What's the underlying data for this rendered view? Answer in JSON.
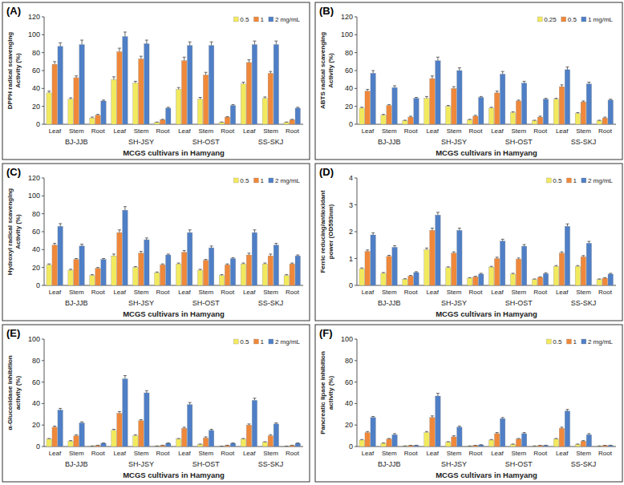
{
  "chart_data": [
    {
      "type": "bar",
      "panel": "(A)",
      "ylabel": [
        "DPPH radical scavenging",
        "Activity (%)"
      ],
      "xlabel": "MCGS cultivars in Hamyang",
      "categories": [
        "Leaf",
        "Stem",
        "Root",
        "Leaf",
        "Stem",
        "Root",
        "Leaf",
        "Stem",
        "Root",
        "Leaf",
        "Stem",
        "Root"
      ],
      "group_labels": [
        "BJ-JJB",
        "SH-JSY",
        "SH-OST",
        "SS-SKJ"
      ],
      "ylim": [
        0,
        120
      ],
      "yticks": [
        0,
        20,
        40,
        60,
        80,
        100,
        120
      ],
      "grid": false,
      "legend": "upper right",
      "series": [
        {
          "name": "0.5",
          "color": "#f2ea5e",
          "values": [
            35,
            28,
            7,
            50,
            46,
            2,
            39,
            28,
            2,
            45,
            29,
            2
          ],
          "errors": [
            2,
            1.5,
            1,
            3,
            2,
            0.5,
            2,
            2,
            0.5,
            2,
            1.5,
            0.5
          ]
        },
        {
          "name": "1",
          "color": "#f0883a",
          "values": [
            67,
            52,
            10,
            81,
            73,
            5,
            71,
            55,
            8,
            69,
            57,
            5
          ],
          "errors": [
            3,
            2,
            1,
            4,
            3,
            0.5,
            4,
            3,
            0.5,
            3,
            2,
            0.5
          ]
        },
        {
          "name": "2 mg/mL",
          "color": "#4f7fc6",
          "values": [
            87,
            89,
            26,
            98,
            90,
            18,
            88,
            88,
            21,
            89,
            89,
            18
          ],
          "errors": [
            4,
            5,
            1,
            5,
            4,
            1,
            4,
            4,
            1,
            4,
            4,
            1
          ]
        }
      ]
    },
    {
      "type": "bar",
      "panel": "(B)",
      "ylabel": [
        "ABTS radical scavenging",
        "Activity (%)"
      ],
      "xlabel": "MCGS cultivars in Hamyang",
      "categories": [
        "Leaf",
        "Stem",
        "Root",
        "Leaf",
        "Stem",
        "Root",
        "Leaf",
        "Stem",
        "Root",
        "Leaf",
        "Stem",
        "Root"
      ],
      "group_labels": [
        "BJ-JJB",
        "SH-JSY",
        "SH-OST",
        "SS-SKJ"
      ],
      "ylim": [
        0,
        120
      ],
      "yticks": [
        0,
        20,
        40,
        60,
        80,
        100,
        120
      ],
      "grid": false,
      "legend": "upper right",
      "series": [
        {
          "name": "0.25",
          "color": "#f2ea5e",
          "values": [
            18,
            10,
            4,
            29,
            20,
            5,
            18,
            13,
            4,
            28,
            12,
            4
          ],
          "errors": [
            1,
            1,
            0.5,
            2,
            1,
            0.5,
            1,
            1,
            0.5,
            1,
            1,
            0.5
          ]
        },
        {
          "name": "0.5",
          "color": "#f0883a",
          "values": [
            37,
            21,
            8,
            51,
            40,
            9,
            35,
            26,
            8,
            42,
            25,
            7
          ],
          "errors": [
            2,
            1,
            1,
            3,
            2,
            1,
            2,
            1,
            1,
            2,
            1,
            1
          ]
        },
        {
          "name": "1 mg/mL",
          "color": "#4f7fc6",
          "values": [
            57,
            41,
            29,
            71,
            60,
            30,
            56,
            46,
            28,
            61,
            45,
            27
          ],
          "errors": [
            3,
            2,
            1,
            4,
            3,
            1,
            3,
            2,
            1,
            3,
            2,
            1
          ]
        }
      ]
    },
    {
      "type": "bar",
      "panel": "(C)",
      "ylabel": [
        "Hydroxyl radical scavenging",
        "Activity (%)"
      ],
      "xlabel": "MCGS cultivars in Hamyang",
      "categories": [
        "Leaf",
        "Stem",
        "Root",
        "Leaf",
        "Stem",
        "Root",
        "Leaf",
        "Stem",
        "Root",
        "Leaf",
        "Stem",
        "Root"
      ],
      "group_labels": [
        "BJ-JJB",
        "SH-JSY",
        "SH-OST",
        "SS-SKJ"
      ],
      "ylim": [
        0,
        120
      ],
      "yticks": [
        0,
        20,
        40,
        60,
        80,
        100,
        120
      ],
      "grid": false,
      "legend": "upper right",
      "series": [
        {
          "name": "0.5",
          "color": "#f2ea5e",
          "values": [
            23,
            17,
            11,
            33,
            20,
            14,
            24,
            17,
            11,
            24,
            24,
            11
          ],
          "errors": [
            1,
            1,
            1,
            2,
            1,
            1,
            1,
            1,
            1,
            1,
            1,
            1
          ]
        },
        {
          "name": "1",
          "color": "#f0883a",
          "values": [
            45,
            29,
            19,
            59,
            36,
            23,
            37,
            28,
            23,
            34,
            33,
            24
          ],
          "errors": [
            2,
            1,
            1,
            3,
            2,
            1,
            2,
            1,
            1,
            2,
            2,
            1
          ]
        },
        {
          "name": "2 mg/mL",
          "color": "#4f7fc6",
          "values": [
            66,
            44,
            29,
            84,
            51,
            34,
            59,
            42,
            30,
            59,
            45,
            33
          ],
          "errors": [
            3,
            2,
            1,
            4,
            2,
            1,
            3,
            2,
            1,
            3,
            2,
            1
          ]
        }
      ]
    },
    {
      "type": "bar",
      "panel": "(D)",
      "ylabel": [
        "Ferric reducing/antioxidant",
        "power (OD593nm)"
      ],
      "xlabel": "MCGS cultivars in Hamyang",
      "categories": [
        "Leaf",
        "Stem",
        "Root",
        "Leaf",
        "Stem",
        "Root",
        "Leaf",
        "Stem",
        "Root",
        "Leaf",
        "Stem",
        "Root"
      ],
      "group_labels": [
        "BJ-JJB",
        "SH-JSY",
        "SH-OST",
        "SS-SKJ"
      ],
      "ylim": [
        0,
        4
      ],
      "yticks": [
        0,
        1,
        2,
        3,
        4
      ],
      "grid": false,
      "legend": "upper right",
      "series": [
        {
          "name": "0.5",
          "color": "#f2ea5e",
          "values": [
            0.62,
            0.45,
            0.23,
            1.33,
            0.66,
            0.27,
            0.68,
            0.42,
            0.22,
            0.71,
            0.71,
            0.22
          ],
          "errors": [
            0.03,
            0.03,
            0.02,
            0.06,
            0.03,
            0.02,
            0.03,
            0.03,
            0.02,
            0.03,
            0.03,
            0.02
          ]
        },
        {
          "name": "1",
          "color": "#f0883a",
          "values": [
            1.27,
            1.08,
            0.35,
            2.05,
            1.2,
            0.32,
            1.0,
            0.98,
            0.3,
            1.2,
            1.07,
            0.27
          ],
          "errors": [
            0.05,
            0.04,
            0.02,
            0.08,
            0.05,
            0.02,
            0.05,
            0.04,
            0.02,
            0.05,
            0.04,
            0.02
          ]
        },
        {
          "name": "2 mg/mL",
          "color": "#4f7fc6",
          "values": [
            1.88,
            1.42,
            0.48,
            2.62,
            2.05,
            0.42,
            1.65,
            1.46,
            0.44,
            2.2,
            1.57,
            0.42
          ],
          "errors": [
            0.08,
            0.06,
            0.03,
            0.1,
            0.08,
            0.03,
            0.07,
            0.06,
            0.03,
            0.09,
            0.07,
            0.03
          ]
        }
      ]
    },
    {
      "type": "bar",
      "panel": "(E)",
      "ylabel": [
        "α-Glucosidase inhibition",
        "activity (%)"
      ],
      "xlabel": "MCGS cultivars in Hamyang",
      "categories": [
        "Leaf",
        "Stem",
        "Root",
        "Leaf",
        "Stem",
        "Root",
        "Leaf",
        "Stem",
        "Root",
        "Leaf",
        "Stem",
        "Root"
      ],
      "group_labels": [
        "BJ-JJB",
        "SH-JSY",
        "SH-OST",
        "SS-SKJ"
      ],
      "ylim": [
        0,
        100
      ],
      "yticks": [
        0,
        20,
        40,
        60,
        80,
        100
      ],
      "grid": false,
      "legend": "upper right",
      "series": [
        {
          "name": "0.5",
          "color": "#f2ea5e",
          "values": [
            7,
            5,
            0.5,
            15,
            10,
            0.5,
            7,
            2,
            0.3,
            7,
            4,
            0.3
          ],
          "errors": [
            0.5,
            0.5,
            0.1,
            1,
            1,
            0.1,
            0.5,
            0.3,
            0.1,
            0.5,
            0.5,
            0.1
          ]
        },
        {
          "name": "1",
          "color": "#f0883a",
          "values": [
            18,
            10,
            1,
            31,
            24,
            1,
            17,
            8,
            1,
            20,
            10,
            1
          ],
          "errors": [
            1,
            1,
            0.2,
            1.5,
            1,
            0.2,
            1,
            1,
            0.2,
            1,
            1,
            0.2
          ]
        },
        {
          "name": "2 mg/mL",
          "color": "#4f7fc6",
          "values": [
            34,
            22,
            3,
            63,
            50,
            3,
            39,
            15,
            3,
            43,
            21,
            3
          ],
          "errors": [
            1.5,
            1,
            0.3,
            3,
            2,
            0.3,
            2,
            1,
            0.3,
            2,
            1,
            0.3
          ]
        }
      ]
    },
    {
      "type": "bar",
      "panel": "(F)",
      "ylabel": [
        "Pancreatic lipase inhibition",
        "activity (%)"
      ],
      "xlabel": "MCGS cultivars in Hamyang",
      "categories": [
        "Leaf",
        "Stem",
        "Root",
        "Leaf",
        "Stem",
        "Root",
        "Leaf",
        "Stem",
        "Root",
        "Leaf",
        "Stem",
        "Root"
      ],
      "group_labels": [
        "BJ-JJB",
        "SH-JSY",
        "SH-OST",
        "SS-SKJ"
      ],
      "ylim": [
        0,
        100
      ],
      "yticks": [
        0,
        20,
        40,
        60,
        80,
        100
      ],
      "grid": false,
      "legend": "upper right",
      "series": [
        {
          "name": "0.5",
          "color": "#f2ea5e",
          "values": [
            6,
            3,
            0.5,
            13,
            4,
            0.5,
            6,
            2,
            0.5,
            7,
            2,
            0.5
          ],
          "errors": [
            0.5,
            0.3,
            0.1,
            1,
            0.5,
            0.1,
            0.5,
            0.3,
            0.1,
            0.5,
            0.3,
            0.1
          ]
        },
        {
          "name": "1",
          "color": "#f0883a",
          "values": [
            13,
            7,
            1,
            27,
            9,
            1,
            12,
            7,
            1,
            17,
            5,
            1
          ],
          "errors": [
            1,
            0.5,
            0.1,
            1.5,
            1,
            0.1,
            1,
            0.5,
            0.1,
            1,
            0.5,
            0.1
          ]
        },
        {
          "name": "2 mg/mL",
          "color": "#4f7fc6",
          "values": [
            27,
            11,
            1,
            47,
            18,
            1.5,
            26,
            12,
            1,
            33,
            11,
            1
          ],
          "errors": [
            1,
            1,
            0.2,
            2.5,
            1,
            0.2,
            1,
            1,
            0.2,
            1.5,
            1,
            0.2
          ]
        }
      ]
    }
  ]
}
